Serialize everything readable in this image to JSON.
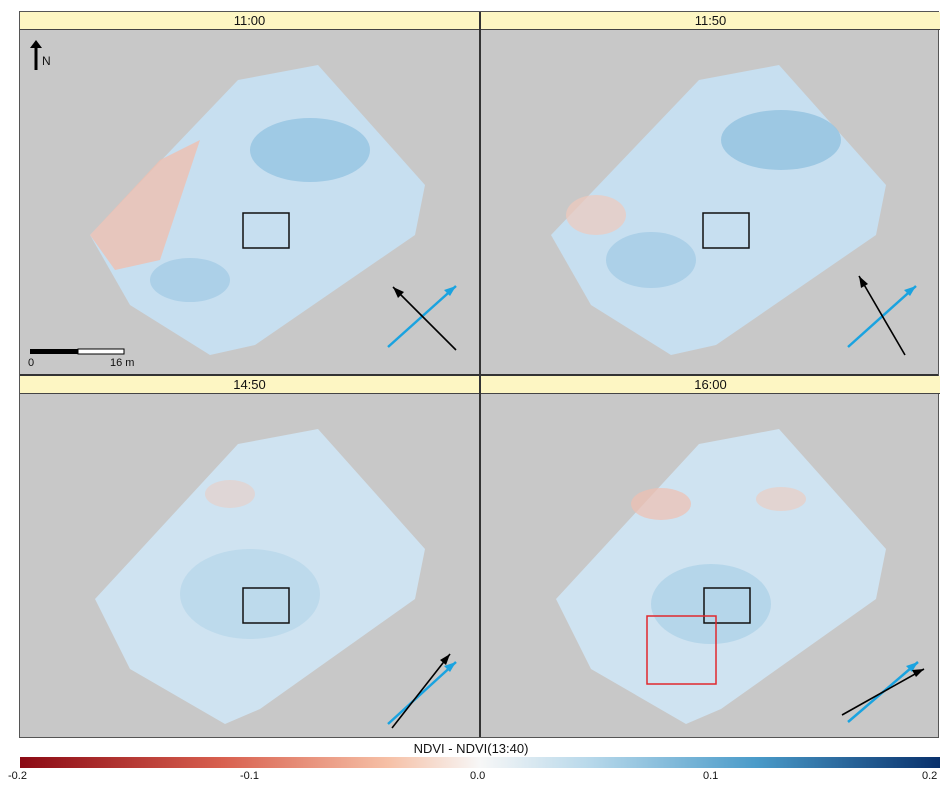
{
  "panels": [
    {
      "time": "11:00",
      "arrow": "sun-wind-arrows-1100"
    },
    {
      "time": "11:50",
      "arrow": "sun-wind-arrows-1150"
    },
    {
      "time": "14:50",
      "arrow": "sun-wind-arrows-1450"
    },
    {
      "time": "16:00",
      "arrow": "sun-wind-arrows-1600"
    }
  ],
  "north_label": "N",
  "scalebar": {
    "start": "0",
    "end": "16 m"
  },
  "legend": {
    "title": "NDVI - NDVI(13:40)",
    "ticks": [
      "-0.2",
      "-0.1",
      "0.0",
      "0.1",
      "0.2"
    ]
  },
  "colors": {
    "background": "#c8c8c8",
    "header": "#fdf6c3",
    "negative": "#8b0a14",
    "neutral": "#f7f7f7",
    "positive": "#08306b",
    "sun_arrow": "#1aa3e0",
    "view_arrow": "#000000",
    "highlight_box": "#e0282e"
  }
}
